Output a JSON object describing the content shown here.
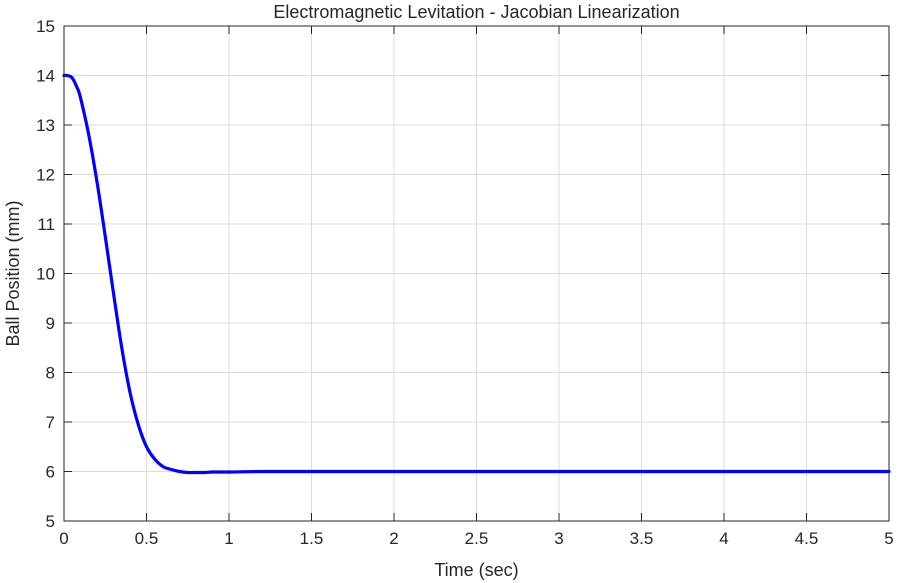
{
  "chart_data": {
    "type": "line",
    "title": "Electromagnetic Levitation - Jacobian Linearization",
    "xlabel": "Time (sec)",
    "ylabel": "Ball Position (mm)",
    "xlim": [
      0,
      5
    ],
    "ylim": [
      5,
      15
    ],
    "xticks": [
      0,
      0.5,
      1,
      1.5,
      2,
      2.5,
      3,
      3.5,
      4,
      4.5,
      5
    ],
    "xtick_labels": [
      "0",
      "0.5",
      "1",
      "1.5",
      "2",
      "2.5",
      "3",
      "3.5",
      "4",
      "4.5",
      "5"
    ],
    "yticks": [
      5,
      6,
      7,
      8,
      9,
      10,
      11,
      12,
      13,
      14,
      15
    ],
    "ytick_labels": [
      "5",
      "6",
      "7",
      "8",
      "9",
      "10",
      "11",
      "12",
      "13",
      "14",
      "15"
    ],
    "grid": true,
    "series": [
      {
        "color": "#0000ff",
        "x": [
          0,
          0.02,
          0.05,
          0.08,
          0.1,
          0.15,
          0.2,
          0.25,
          0.3,
          0.35,
          0.4,
          0.45,
          0.5,
          0.55,
          0.6,
          0.65,
          0.7,
          0.75,
          0.8,
          0.85,
          0.9,
          1.0,
          1.2,
          1.5,
          2,
          3,
          4,
          5
        ],
        "y": [
          14.0,
          14.0,
          13.95,
          13.75,
          13.55,
          12.8,
          11.85,
          10.75,
          9.6,
          8.5,
          7.6,
          6.95,
          6.5,
          6.25,
          6.1,
          6.04,
          6.0,
          5.98,
          5.98,
          5.98,
          5.99,
          5.99,
          6.0,
          6.0,
          6.0,
          6.0,
          6.0,
          6.0
        ]
      }
    ]
  }
}
